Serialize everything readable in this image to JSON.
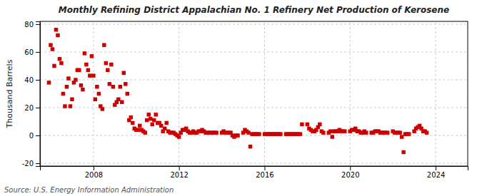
{
  "chart_data": {
    "type": "scatter",
    "title": "Monthly Refining District Appalachian No. 1 Refinery Net Production of Kerosene",
    "y_label": "Thousand Barrels",
    "source": "Source: U.S. Energy Information Administration",
    "color": "#CC0000",
    "marker": "square",
    "grid": true,
    "xlim": [
      2005.5,
      2025.5
    ],
    "ylim": [
      -22,
      82
    ],
    "xticks": [
      2008,
      2012,
      2016,
      2020,
      2024
    ],
    "yticks": [
      -20,
      0,
      20,
      40,
      60,
      80
    ],
    "x": [
      2005.917,
      2006.0,
      2006.083,
      2006.167,
      2006.25,
      2006.333,
      2006.417,
      2006.5,
      2006.583,
      2006.667,
      2006.75,
      2006.833,
      2006.917,
      2007.0,
      2007.083,
      2007.167,
      2007.25,
      2007.333,
      2007.417,
      2007.5,
      2007.583,
      2007.667,
      2007.75,
      2007.833,
      2007.917,
      2008.0,
      2008.083,
      2008.167,
      2008.25,
      2008.333,
      2008.417,
      2008.5,
      2008.583,
      2008.667,
      2008.75,
      2008.833,
      2008.917,
      2009.0,
      2009.083,
      2009.167,
      2009.25,
      2009.333,
      2009.417,
      2009.5,
      2009.583,
      2009.667,
      2009.75,
      2009.833,
      2009.917,
      2010.0,
      2010.083,
      2010.167,
      2010.25,
      2010.333,
      2010.417,
      2010.5,
      2010.583,
      2010.667,
      2010.75,
      2010.833,
      2010.917,
      2011.0,
      2011.083,
      2011.167,
      2011.25,
      2011.333,
      2011.417,
      2011.5,
      2011.583,
      2011.667,
      2011.75,
      2011.833,
      2011.917,
      2012.0,
      2012.083,
      2012.167,
      2012.25,
      2012.333,
      2012.417,
      2012.5,
      2012.583,
      2012.667,
      2012.75,
      2012.833,
      2012.917,
      2013.0,
      2013.083,
      2013.167,
      2013.25,
      2013.333,
      2013.417,
      2013.5,
      2013.583,
      2013.667,
      2013.75,
      2014.0,
      2014.083,
      2014.167,
      2014.25,
      2014.333,
      2014.417,
      2014.5,
      2014.583,
      2014.667,
      2014.75,
      2015.0,
      2015.083,
      2015.167,
      2015.25,
      2015.333,
      2015.417,
      2015.5,
      2015.583,
      2015.667,
      2015.75,
      2016.0,
      2016.083,
      2016.167,
      2016.25,
      2016.333,
      2016.417,
      2016.5,
      2016.583,
      2016.667,
      2016.75,
      2017.0,
      2017.083,
      2017.167,
      2017.25,
      2017.333,
      2017.417,
      2017.5,
      2017.583,
      2017.667,
      2017.75,
      2018.0,
      2018.083,
      2018.167,
      2018.25,
      2018.333,
      2018.417,
      2018.5,
      2018.583,
      2018.667,
      2018.75,
      2019.0,
      2019.083,
      2019.167,
      2019.25,
      2019.333,
      2019.417,
      2019.5,
      2019.583,
      2019.667,
      2019.75,
      2020.0,
      2020.083,
      2020.167,
      2020.25,
      2020.333,
      2020.417,
      2020.5,
      2020.583,
      2020.667,
      2020.75,
      2021.0,
      2021.083,
      2021.167,
      2021.25,
      2021.333,
      2021.417,
      2021.5,
      2021.583,
      2021.667,
      2021.75,
      2022.0,
      2022.083,
      2022.167,
      2022.25,
      2022.333,
      2022.417,
      2022.5,
      2022.583,
      2022.667,
      2022.75,
      2023.0,
      2023.083,
      2023.167,
      2023.25,
      2023.333,
      2023.417,
      2023.5,
      2023.583
    ],
    "values": [
      38,
      65,
      62,
      50,
      76,
      72,
      55,
      52,
      30,
      21,
      35,
      41,
      21,
      26,
      38,
      40,
      47,
      47,
      36,
      33,
      59,
      51,
      47,
      43,
      57,
      43,
      26,
      35,
      30,
      21,
      19,
      65,
      52,
      47,
      37,
      51,
      35,
      22,
      24,
      26,
      35,
      24,
      45,
      37,
      30,
      11,
      13,
      9,
      5,
      4,
      4,
      7,
      4,
      3,
      2,
      11,
      15,
      12,
      8,
      11,
      15,
      9,
      9,
      7,
      3,
      5,
      9,
      3,
      2,
      2,
      2,
      1,
      0,
      -1,
      2,
      4,
      4,
      5,
      3,
      2,
      2,
      3,
      2,
      2,
      3,
      3,
      4,
      3,
      2,
      2,
      2,
      2,
      2,
      2,
      2,
      2,
      3,
      2,
      2,
      2,
      2,
      0,
      -1,
      0,
      0,
      2,
      4,
      3,
      2,
      -8,
      1,
      1,
      1,
      1,
      1,
      1,
      1,
      1,
      1,
      1,
      1,
      1,
      1,
      1,
      1,
      1,
      1,
      1,
      1,
      1,
      1,
      1,
      1,
      1,
      8,
      8,
      5,
      4,
      3,
      3,
      4,
      6,
      8,
      3,
      2,
      2,
      3,
      -1,
      3,
      3,
      3,
      4,
      3,
      3,
      3,
      3,
      4,
      4,
      5,
      3,
      3,
      2,
      2,
      3,
      2,
      2,
      2,
      3,
      3,
      3,
      2,
      2,
      2,
      2,
      2,
      3,
      2,
      2,
      2,
      2,
      -1,
      -12,
      1,
      1,
      1,
      3,
      5,
      6,
      7,
      5,
      3,
      3,
      2
    ]
  }
}
